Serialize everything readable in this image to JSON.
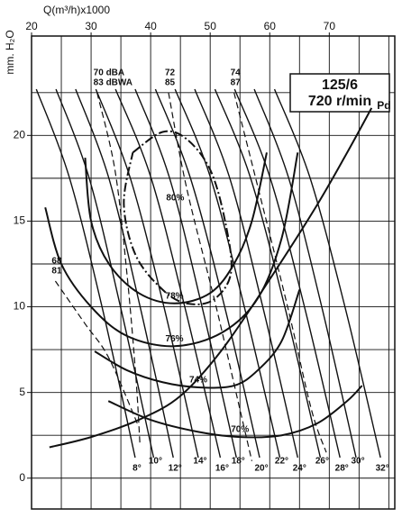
{
  "chart_data": {
    "type": "line",
    "title": "125/6",
    "subtitle": "720 r/min",
    "x_label": "Q(m³/h)x1000",
    "y_label": "mm. H₂O",
    "xlim": [
      20,
      81
    ],
    "ylim": [
      -1.8,
      25.8
    ],
    "xticks": [
      20,
      30,
      40,
      50,
      60,
      70
    ],
    "yticks": [
      0,
      5,
      10,
      15,
      20
    ],
    "xgrid": [
      20,
      25,
      30,
      35,
      40,
      45,
      50,
      55,
      60,
      65,
      70,
      75,
      80
    ],
    "ygrid": [
      0,
      2.5,
      5,
      7.5,
      10,
      12.5,
      15,
      17.5,
      20,
      22.5
    ],
    "grid": true,
    "color": "#111111",
    "blade_curves": [
      {
        "name": "8°",
        "x": [
          20.8,
          26.3,
          31.9,
          37.4
        ],
        "y": [
          22.7,
          17.6,
          9.9,
          1.2
        ]
      },
      {
        "name": "10°",
        "x": [
          24.1,
          29.6,
          35.0,
          40.5
        ],
        "y": [
          22.7,
          17.6,
          9.9,
          1.2
        ]
      },
      {
        "name": "12°",
        "x": [
          27.4,
          32.9,
          38.3,
          43.8
        ],
        "y": [
          22.7,
          17.6,
          9.9,
          1.2
        ]
      },
      {
        "name": "14°",
        "x": [
          30.8,
          36.5,
          42.3,
          48.0
        ],
        "y": [
          22.7,
          17.6,
          9.9,
          1.2
        ]
      },
      {
        "name": "16°",
        "x": [
          34.1,
          40.0,
          45.8,
          51.7
        ],
        "y": [
          22.7,
          17.6,
          9.9,
          1.2
        ]
      },
      {
        "name": "18°",
        "x": [
          37.4,
          43.1,
          48.7,
          54.4
        ],
        "y": [
          22.7,
          17.6,
          9.9,
          1.2
        ]
      },
      {
        "name": "20°",
        "x": [
          40.8,
          46.6,
          52.5,
          58.3
        ],
        "y": [
          22.7,
          17.6,
          9.9,
          1.2
        ]
      },
      {
        "name": "22°",
        "x": [
          44.1,
          50.0,
          55.8,
          61.7
        ],
        "y": [
          22.7,
          17.6,
          9.9,
          1.2
        ]
      },
      {
        "name": "24°",
        "x": [
          47.4,
          53.2,
          58.9,
          64.7
        ],
        "y": [
          22.7,
          17.6,
          9.9,
          1.2
        ]
      },
      {
        "name": "26°",
        "x": [
          50.8,
          56.7,
          62.6,
          68.5
        ],
        "y": [
          22.7,
          17.6,
          9.9,
          1.2
        ]
      },
      {
        "name": "28°",
        "x": [
          54.1,
          60.0,
          65.9,
          71.8
        ],
        "y": [
          22.7,
          17.6,
          9.9,
          1.2
        ]
      },
      {
        "name": "30°",
        "x": [
          57.4,
          63.1,
          68.8,
          74.5
        ],
        "y": [
          22.7,
          17.6,
          9.9,
          1.2
        ]
      },
      {
        "name": "32°",
        "x": [
          60.8,
          66.7,
          72.7,
          78.6
        ],
        "y": [
          22.7,
          17.6,
          9.9,
          1.2
        ]
      }
    ],
    "efficiency_curves": [
      {
        "name": "80%",
        "x": [
          37,
          42,
          46,
          50,
          52.5,
          53.5,
          50.5,
          46,
          42,
          37.5,
          35.5,
          37
        ],
        "y": [
          19,
          20.2,
          19.8,
          18,
          15,
          12,
          10.4,
          10.2,
          11,
          13,
          16,
          19
        ]
      },
      {
        "name": "78%",
        "x": [
          29,
          30,
          33,
          38,
          44,
          50,
          54,
          57,
          59.5
        ],
        "y": [
          18.7,
          15,
          12.5,
          10.8,
          10.2,
          10.8,
          12.5,
          15,
          19
        ]
      },
      {
        "name": "76%",
        "x": [
          22.3,
          25,
          30,
          36,
          44,
          52,
          58,
          62,
          64.7
        ],
        "y": [
          15.8,
          12.5,
          10,
          8.3,
          7.7,
          8.5,
          10.5,
          14,
          19
        ]
      },
      {
        "name": "74%",
        "x": [
          30.6,
          36,
          42,
          48,
          54,
          58,
          62,
          65
        ],
        "y": [
          7.4,
          6.3,
          5.6,
          5.3,
          5.4,
          6.3,
          8,
          11
        ]
      },
      {
        "name": "70%",
        "x": [
          32.9,
          40,
          48,
          55,
          62,
          68,
          73,
          75.5
        ],
        "y": [
          4.5,
          3.4,
          2.7,
          2.4,
          2.5,
          3.2,
          4.5,
          5.4
        ]
      }
    ],
    "noise_curves": [
      {
        "labels": [
          "68",
          "81"
        ],
        "x": [
          24,
          29,
          33,
          38
        ],
        "y": [
          11.5,
          9,
          7,
          3
        ]
      },
      {
        "labels": [
          "70 dBA",
          "83 dBWA"
        ],
        "x": [
          31,
          34,
          36,
          37.5,
          38.2
        ],
        "y": [
          22.5,
          18,
          12,
          6,
          2
        ]
      },
      {
        "labels": [
          "72",
          "85"
        ],
        "x": [
          43,
          46,
          51,
          55,
          57
        ],
        "y": [
          22.5,
          17,
          10,
          4,
          1
        ]
      },
      {
        "labels": [
          "74",
          "87"
        ],
        "x": [
          54,
          58,
          63,
          67,
          69.5
        ],
        "y": [
          22.5,
          17,
          10,
          4,
          1.5
        ]
      }
    ],
    "system_curve": {
      "name": "Pd",
      "x": [
        23,
        30,
        38,
        45,
        52,
        60,
        67.7,
        73,
        77.1
      ],
      "y": [
        1.8,
        2.4,
        3.4,
        4.8,
        7.5,
        11.6,
        15.8,
        19,
        21.6
      ]
    }
  }
}
